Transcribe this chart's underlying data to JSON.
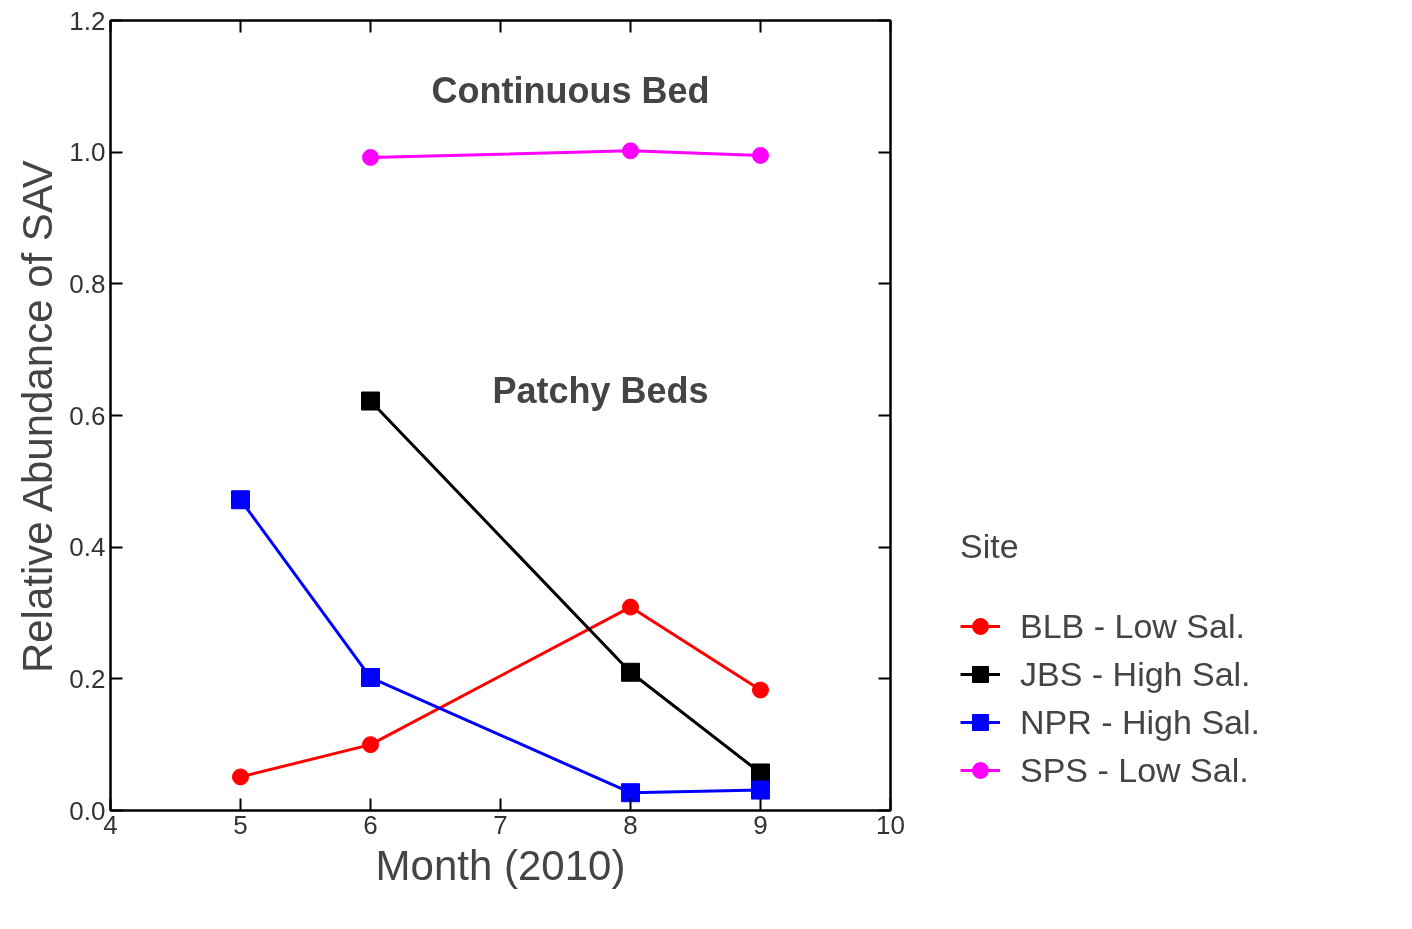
{
  "chart_data": {
    "type": "line",
    "xlabel": "Month (2010)",
    "ylabel": "Relative Abundance of SAV",
    "legend_title": "Site",
    "xlim": [
      4,
      10
    ],
    "xticks": [
      4,
      5,
      6,
      7,
      8,
      9,
      10
    ],
    "ylim": [
      0,
      1.2
    ],
    "yticks": [
      {
        "value": 0,
        "label": "0.0"
      },
      {
        "value": 0.2,
        "label": "0.2"
      },
      {
        "value": 0.4,
        "label": "0.4"
      },
      {
        "value": 0.6,
        "label": "0.6"
      },
      {
        "value": 0.8,
        "label": "0.8"
      },
      {
        "value": 1.0,
        "label": "1.0"
      },
      {
        "value": 1.2,
        "label": "1.2"
      }
    ],
    "grid": false,
    "legend": "right",
    "line_style": "solid",
    "annotations": [
      "Continuous Bed",
      "Patchy Beds"
    ],
    "series": [
      {
        "name": "BLB - Low Sal.",
        "color": "#ff0000",
        "marker": "circle",
        "x": [
          5,
          6,
          8,
          9
        ],
        "values": [
          0.051,
          0.1,
          0.309,
          0.183
        ]
      },
      {
        "name": "JBS - High Sal.",
        "color": "#000000",
        "marker": "square",
        "x": [
          6,
          8,
          9
        ],
        "values": [
          0.622,
          0.21,
          0.057
        ]
      },
      {
        "name": "NPR - High Sal.",
        "color": "#0000ff",
        "marker": "square",
        "x": [
          5,
          6,
          8,
          9
        ],
        "values": [
          0.472,
          0.202,
          0.027,
          0.031
        ]
      },
      {
        "name": "SPS - Low Sal.",
        "color": "#ff00ff",
        "marker": "circle",
        "x": [
          6,
          8,
          9
        ],
        "values": [
          0.992,
          1.002,
          0.995
        ]
      }
    ]
  }
}
